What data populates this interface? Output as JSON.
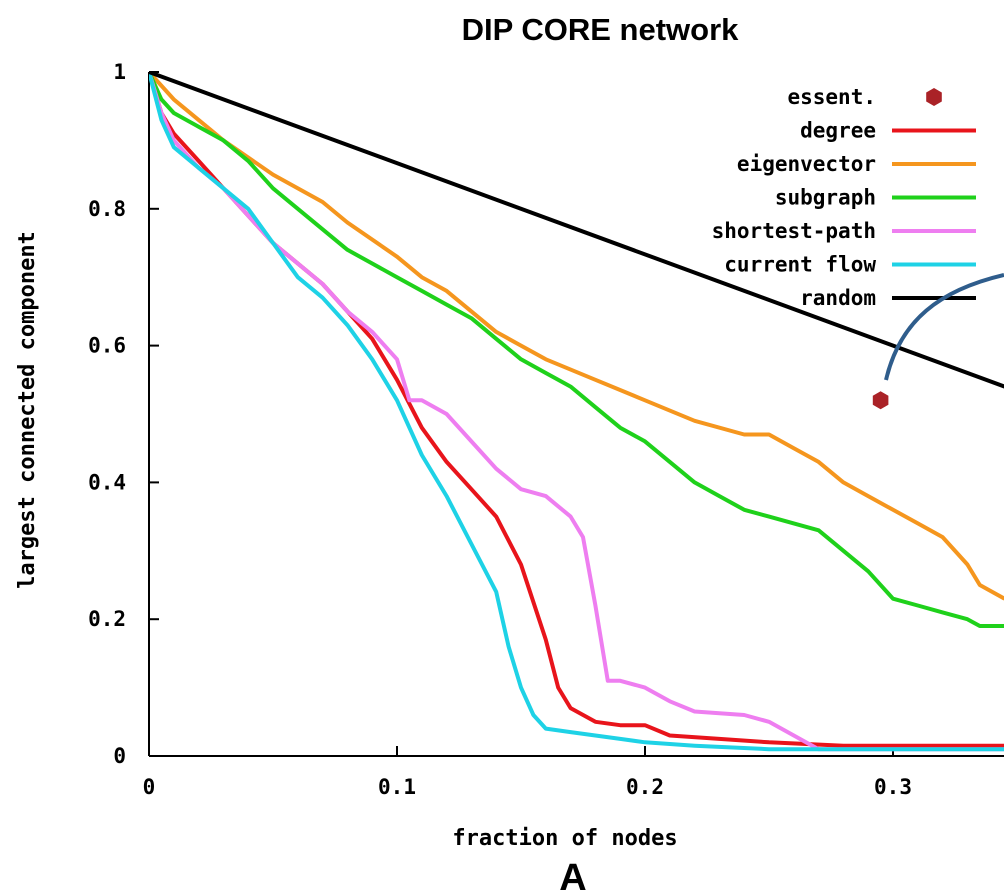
{
  "chart_data": {
    "type": "line",
    "title": "DIP CORE network",
    "xlabel": "fraction of nodes",
    "ylabel": "largest connected component",
    "panel_label": "A",
    "xlim": [
      0,
      0.345
    ],
    "ylim": [
      0,
      1
    ],
    "x_ticks": [
      {
        "value": 0,
        "label": "0"
      },
      {
        "value": 0.1,
        "label": "0.1"
      },
      {
        "value": 0.2,
        "label": "0.2"
      },
      {
        "value": 0.3,
        "label": "0.3"
      }
    ],
    "y_ticks": [
      {
        "value": 0,
        "label": "0"
      },
      {
        "value": 0.2,
        "label": "0.2"
      },
      {
        "value": 0.4,
        "label": "0.4"
      },
      {
        "value": 0.6,
        "label": "0.6"
      },
      {
        "value": 0.8,
        "label": "0.8"
      },
      {
        "value": 1,
        "label": "1"
      }
    ],
    "grid": false,
    "legend_position": "top-right",
    "series": [
      {
        "name": "degree",
        "color": "#e8141b",
        "points": [
          [
            0,
            1
          ],
          [
            0.005,
            0.94
          ],
          [
            0.01,
            0.91
          ],
          [
            0.02,
            0.87
          ],
          [
            0.03,
            0.83
          ],
          [
            0.04,
            0.79
          ],
          [
            0.05,
            0.75
          ],
          [
            0.06,
            0.72
          ],
          [
            0.07,
            0.69
          ],
          [
            0.08,
            0.65
          ],
          [
            0.09,
            0.61
          ],
          [
            0.1,
            0.55
          ],
          [
            0.11,
            0.48
          ],
          [
            0.12,
            0.43
          ],
          [
            0.13,
            0.39
          ],
          [
            0.14,
            0.35
          ],
          [
            0.15,
            0.28
          ],
          [
            0.16,
            0.17
          ],
          [
            0.165,
            0.1
          ],
          [
            0.17,
            0.07
          ],
          [
            0.18,
            0.05
          ],
          [
            0.19,
            0.045
          ],
          [
            0.2,
            0.045
          ],
          [
            0.21,
            0.03
          ],
          [
            0.23,
            0.025
          ],
          [
            0.25,
            0.02
          ],
          [
            0.28,
            0.015
          ],
          [
            0.345,
            0.015
          ]
        ]
      },
      {
        "name": "eigenvector",
        "color": "#f5961e",
        "points": [
          [
            0,
            1
          ],
          [
            0.01,
            0.96
          ],
          [
            0.02,
            0.93
          ],
          [
            0.03,
            0.9
          ],
          [
            0.05,
            0.85
          ],
          [
            0.07,
            0.81
          ],
          [
            0.08,
            0.78
          ],
          [
            0.1,
            0.73
          ],
          [
            0.11,
            0.7
          ],
          [
            0.12,
            0.68
          ],
          [
            0.13,
            0.65
          ],
          [
            0.14,
            0.62
          ],
          [
            0.15,
            0.6
          ],
          [
            0.16,
            0.58
          ],
          [
            0.18,
            0.55
          ],
          [
            0.2,
            0.52
          ],
          [
            0.22,
            0.49
          ],
          [
            0.24,
            0.47
          ],
          [
            0.25,
            0.47
          ],
          [
            0.26,
            0.45
          ],
          [
            0.27,
            0.43
          ],
          [
            0.28,
            0.4
          ],
          [
            0.29,
            0.38
          ],
          [
            0.3,
            0.36
          ],
          [
            0.31,
            0.34
          ],
          [
            0.32,
            0.32
          ],
          [
            0.33,
            0.28
          ],
          [
            0.335,
            0.25
          ],
          [
            0.345,
            0.23
          ]
        ]
      },
      {
        "name": "subgraph",
        "color": "#1fd11b",
        "points": [
          [
            0,
            1
          ],
          [
            0.005,
            0.96
          ],
          [
            0.01,
            0.94
          ],
          [
            0.02,
            0.92
          ],
          [
            0.03,
            0.9
          ],
          [
            0.04,
            0.87
          ],
          [
            0.05,
            0.83
          ],
          [
            0.06,
            0.8
          ],
          [
            0.07,
            0.77
          ],
          [
            0.08,
            0.74
          ],
          [
            0.09,
            0.72
          ],
          [
            0.1,
            0.7
          ],
          [
            0.11,
            0.68
          ],
          [
            0.12,
            0.66
          ],
          [
            0.13,
            0.64
          ],
          [
            0.14,
            0.61
          ],
          [
            0.15,
            0.58
          ],
          [
            0.16,
            0.56
          ],
          [
            0.17,
            0.54
          ],
          [
            0.18,
            0.51
          ],
          [
            0.19,
            0.48
          ],
          [
            0.2,
            0.46
          ],
          [
            0.21,
            0.43
          ],
          [
            0.22,
            0.4
          ],
          [
            0.23,
            0.38
          ],
          [
            0.24,
            0.36
          ],
          [
            0.25,
            0.35
          ],
          [
            0.26,
            0.34
          ],
          [
            0.27,
            0.33
          ],
          [
            0.28,
            0.3
          ],
          [
            0.29,
            0.27
          ],
          [
            0.3,
            0.23
          ],
          [
            0.31,
            0.22
          ],
          [
            0.32,
            0.21
          ],
          [
            0.33,
            0.2
          ],
          [
            0.335,
            0.19
          ],
          [
            0.345,
            0.19
          ]
        ]
      },
      {
        "name": "shortest-path",
        "color": "#ee7ef0",
        "points": [
          [
            0,
            1
          ],
          [
            0.005,
            0.94
          ],
          [
            0.01,
            0.9
          ],
          [
            0.02,
            0.86
          ],
          [
            0.03,
            0.83
          ],
          [
            0.04,
            0.79
          ],
          [
            0.05,
            0.75
          ],
          [
            0.06,
            0.72
          ],
          [
            0.07,
            0.69
          ],
          [
            0.08,
            0.65
          ],
          [
            0.09,
            0.62
          ],
          [
            0.1,
            0.58
          ],
          [
            0.105,
            0.52
          ],
          [
            0.11,
            0.52
          ],
          [
            0.12,
            0.5
          ],
          [
            0.13,
            0.46
          ],
          [
            0.14,
            0.42
          ],
          [
            0.15,
            0.39
          ],
          [
            0.16,
            0.38
          ],
          [
            0.17,
            0.35
          ],
          [
            0.175,
            0.32
          ],
          [
            0.18,
            0.22
          ],
          [
            0.185,
            0.11
          ],
          [
            0.19,
            0.11
          ],
          [
            0.2,
            0.1
          ],
          [
            0.21,
            0.08
          ],
          [
            0.22,
            0.065
          ],
          [
            0.24,
            0.06
          ],
          [
            0.25,
            0.05
          ],
          [
            0.26,
            0.03
          ],
          [
            0.27,
            0.01
          ],
          [
            0.345,
            0.01
          ]
        ]
      },
      {
        "name": "current flow",
        "color": "#1ed2e6",
        "points": [
          [
            0,
            1
          ],
          [
            0.005,
            0.93
          ],
          [
            0.01,
            0.89
          ],
          [
            0.02,
            0.86
          ],
          [
            0.03,
            0.83
          ],
          [
            0.04,
            0.8
          ],
          [
            0.05,
            0.75
          ],
          [
            0.06,
            0.7
          ],
          [
            0.07,
            0.67
          ],
          [
            0.08,
            0.63
          ],
          [
            0.09,
            0.58
          ],
          [
            0.1,
            0.52
          ],
          [
            0.11,
            0.44
          ],
          [
            0.12,
            0.38
          ],
          [
            0.13,
            0.31
          ],
          [
            0.14,
            0.24
          ],
          [
            0.145,
            0.16
          ],
          [
            0.15,
            0.1
          ],
          [
            0.155,
            0.06
          ],
          [
            0.16,
            0.04
          ],
          [
            0.17,
            0.035
          ],
          [
            0.18,
            0.03
          ],
          [
            0.19,
            0.025
          ],
          [
            0.2,
            0.02
          ],
          [
            0.22,
            0.015
          ],
          [
            0.25,
            0.01
          ],
          [
            0.345,
            0.01
          ]
        ]
      },
      {
        "name": "random",
        "color": "#000000",
        "points": [
          [
            0,
            1
          ],
          [
            0.345,
            0.54
          ]
        ]
      }
    ],
    "markers": [
      {
        "name": "essent.",
        "color": "#aa2227",
        "x": 0.295,
        "y": 0.52
      }
    ]
  }
}
